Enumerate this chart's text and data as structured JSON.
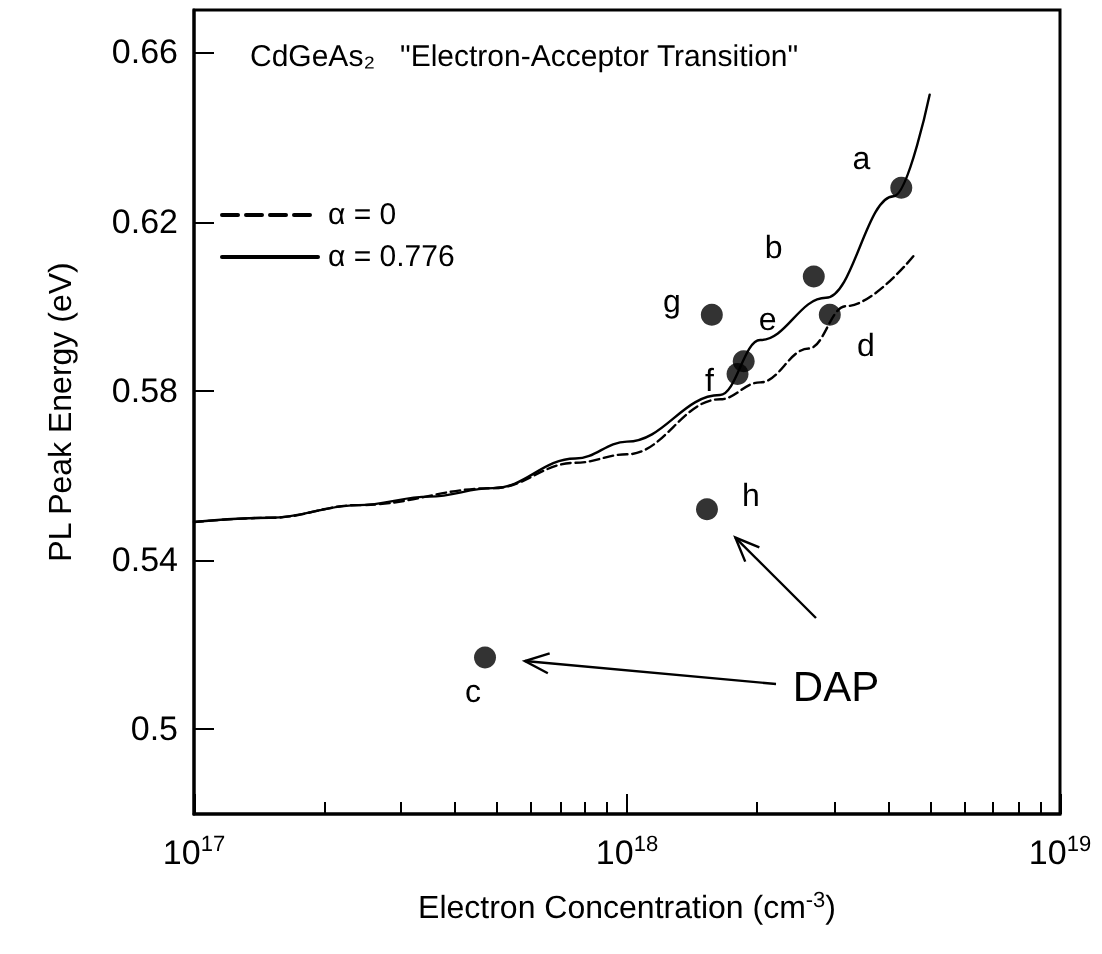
{
  "chart_data": {
    "type": "scatter",
    "title": "CdGeAs₂   \"Electron-Acceptor Transition\"",
    "xlabel": "Electron Concentration (cm$^{-3}$)",
    "ylabel": "PL Peak Energy (eV)",
    "log": "x",
    "xlim": [
      1e+17,
      1e+19
    ],
    "xticks": [
      {
        "value": 1e+17,
        "label": "10$^{17}$"
      },
      {
        "value": 1e+18,
        "label": "10$^{18}$"
      },
      {
        "value": 1e+19,
        "label": "10$^{19}$"
      }
    ],
    "ylim": [
      0.48,
      0.67
    ],
    "yticks": [
      0.5,
      0.54,
      0.58,
      0.62,
      0.66
    ],
    "grid": false,
    "legend": "top left",
    "marker": "circle",
    "series": [
      {
        "color": "#000000",
        "x": [
          4.3e+18,
          2.7e+18,
          4.7e+17,
          2.94e+18,
          1.86e+18,
          1.8e+18,
          1.57e+18,
          1.53e+18
        ],
        "values": [
          0.628,
          0.607,
          0.517,
          0.598,
          0.587,
          0.584,
          0.598,
          0.552
        ]
      },
      {
        "type": "line",
        "name": "α = 0",
        "color": "#000000",
        "line_style": "dashed",
        "marker": "none",
        "x": [
          1e+17,
          1.5e+17,
          2.4e+17,
          4.9e+17,
          7.6e+17,
          1e+18,
          1.64e+18,
          2.03e+18,
          2.63e+18,
          3.2e+18,
          4.6e+18
        ],
        "values": [
          0.549,
          0.55,
          0.553,
          0.557,
          0.563,
          0.565,
          0.578,
          0.582,
          0.59,
          0.6,
          0.612
        ]
      },
      {
        "type": "line",
        "name": "α = 0.776",
        "color": "#000000",
        "line_style": "solid",
        "marker": "none",
        "x": [
          1e+17,
          1.5e+17,
          2.4e+17,
          3.5e+17,
          4.9e+17,
          7.6e+17,
          1e+18,
          1.64e+18,
          2.03e+18,
          2.88e+18,
          4.13e+18,
          5e+18
        ],
        "values": [
          0.549,
          0.55,
          0.553,
          0.555,
          0.557,
          0.564,
          0.568,
          0.579,
          0.592,
          0.602,
          0.626,
          0.65
        ]
      }
    ],
    "annotations": [
      {
        "text": "a",
        "x": 4.3e+18,
        "y": 0.628
      },
      {
        "text": "b",
        "x": 2.7e+18,
        "y": 0.607
      },
      {
        "text": "c",
        "x": 4.7e+17,
        "y": 0.517
      },
      {
        "text": "d",
        "x": 2.94e+18,
        "y": 0.598
      },
      {
        "text": "e",
        "x": 1.86e+18,
        "y": 0.587
      },
      {
        "text": "f",
        "x": 1.8e+18,
        "y": 0.584
      },
      {
        "text": "g",
        "x": 1.57e+18,
        "y": 0.598
      },
      {
        "text": "h",
        "x": 1.53e+18,
        "y": 0.552
      },
      "DAP"
    ]
  }
}
